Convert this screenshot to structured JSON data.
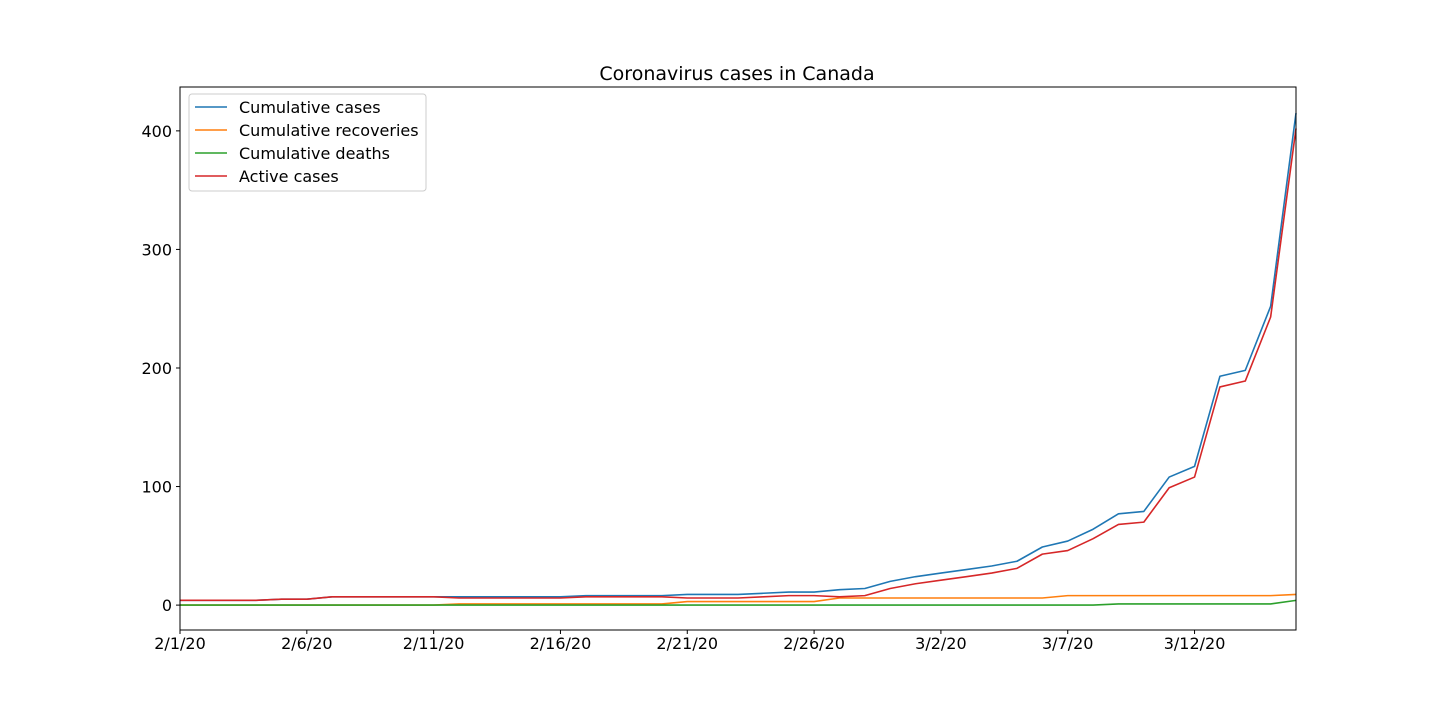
{
  "chart_data": {
    "type": "line",
    "title": "Coronavirus cases in Canada",
    "xlabel": "",
    "ylabel": "",
    "x": [
      "2/1/20",
      "2/2/20",
      "2/3/20",
      "2/4/20",
      "2/5/20",
      "2/6/20",
      "2/7/20",
      "2/8/20",
      "2/9/20",
      "2/10/20",
      "2/11/20",
      "2/12/20",
      "2/13/20",
      "2/14/20",
      "2/15/20",
      "2/16/20",
      "2/17/20",
      "2/18/20",
      "2/19/20",
      "2/20/20",
      "2/21/20",
      "2/22/20",
      "2/23/20",
      "2/24/20",
      "2/25/20",
      "2/26/20",
      "2/27/20",
      "2/28/20",
      "2/29/20",
      "3/1/20",
      "3/2/20",
      "3/3/20",
      "3/4/20",
      "3/5/20",
      "3/6/20",
      "3/7/20",
      "3/8/20",
      "3/9/20",
      "3/10/20",
      "3/11/20",
      "3/12/20",
      "3/13/20",
      "3/14/20",
      "3/15/20",
      "3/16/20"
    ],
    "xticks": [
      "2/1/20",
      "2/6/20",
      "2/11/20",
      "2/16/20",
      "2/21/20",
      "2/26/20",
      "3/2/20",
      "3/7/20",
      "3/12/20"
    ],
    "yticks": [
      0,
      100,
      200,
      300,
      400
    ],
    "ylim": [
      -21,
      437
    ],
    "grid": false,
    "legend_position": "top-left",
    "series": [
      {
        "name": "Cumulative cases",
        "color": "#1f77b4",
        "values": [
          4,
          4,
          4,
          4,
          5,
          5,
          7,
          7,
          7,
          7,
          7,
          7,
          7,
          7,
          7,
          7,
          8,
          8,
          8,
          8,
          9,
          9,
          9,
          10,
          11,
          11,
          13,
          14,
          20,
          24,
          27,
          30,
          33,
          37,
          49,
          54,
          64,
          77,
          79,
          108,
          117,
          193,
          198,
          252,
          415
        ]
      },
      {
        "name": "Cumulative recoveries",
        "color": "#ff7f0e",
        "values": [
          0,
          0,
          0,
          0,
          0,
          0,
          0,
          0,
          0,
          0,
          0,
          1,
          1,
          1,
          1,
          1,
          1,
          1,
          1,
          1,
          3,
          3,
          3,
          3,
          3,
          3,
          6,
          6,
          6,
          6,
          6,
          6,
          6,
          6,
          6,
          8,
          8,
          8,
          8,
          8,
          8,
          8,
          8,
          8,
          9
        ]
      },
      {
        "name": "Cumulative deaths",
        "color": "#2ca02c",
        "values": [
          0,
          0,
          0,
          0,
          0,
          0,
          0,
          0,
          0,
          0,
          0,
          0,
          0,
          0,
          0,
          0,
          0,
          0,
          0,
          0,
          0,
          0,
          0,
          0,
          0,
          0,
          0,
          0,
          0,
          0,
          0,
          0,
          0,
          0,
          0,
          0,
          0,
          1,
          1,
          1,
          1,
          1,
          1,
          1,
          4
        ]
      },
      {
        "name": "Active cases",
        "color": "#d62728",
        "values": [
          4,
          4,
          4,
          4,
          5,
          5,
          7,
          7,
          7,
          7,
          7,
          6,
          6,
          6,
          6,
          6,
          7,
          7,
          7,
          7,
          6,
          6,
          6,
          7,
          8,
          8,
          7,
          8,
          14,
          18,
          21,
          24,
          27,
          31,
          43,
          46,
          56,
          68,
          70,
          99,
          108,
          184,
          189,
          243,
          402
        ]
      }
    ]
  }
}
